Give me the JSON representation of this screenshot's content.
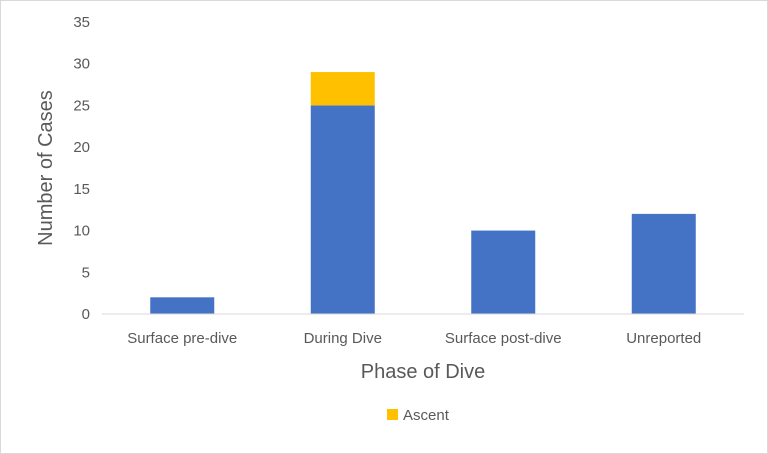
{
  "chart_data": {
    "type": "bar",
    "stacked": true,
    "title": "",
    "xlabel": "Phase of Dive",
    "ylabel": "Number of Cases",
    "categories": [
      "Surface pre-dive",
      "During Dive",
      "Surface post-dive",
      "Unreported"
    ],
    "series": [
      {
        "values": [
          2,
          25,
          10,
          12
        ],
        "color": "#4472C4"
      },
      {
        "name": "Ascent",
        "values": [
          0,
          4,
          0,
          0
        ],
        "color": "#FFC000"
      }
    ],
    "ylim": [
      0,
      35
    ],
    "yticks": [
      0,
      5,
      10,
      15,
      20,
      25,
      30,
      35
    ],
    "grid": false,
    "legend": {
      "position": "bottom",
      "entries": [
        "Ascent"
      ]
    }
  }
}
